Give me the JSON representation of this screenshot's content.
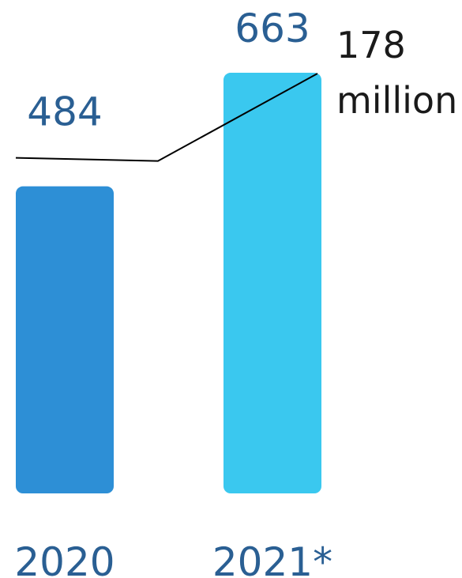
{
  "chart_data": {
    "type": "bar",
    "categories": [
      "2020",
      "2021*"
    ],
    "values": [
      484,
      663
    ],
    "value_labels": [
      "484",
      "663"
    ],
    "bar_colors": [
      "#2d8fd6",
      "#3ac8ef"
    ],
    "annotation": {
      "lines": [
        "178",
        "million"
      ],
      "value": 178
    },
    "ylim": [
      0,
      700
    ],
    "grid": false,
    "legend": "none"
  }
}
